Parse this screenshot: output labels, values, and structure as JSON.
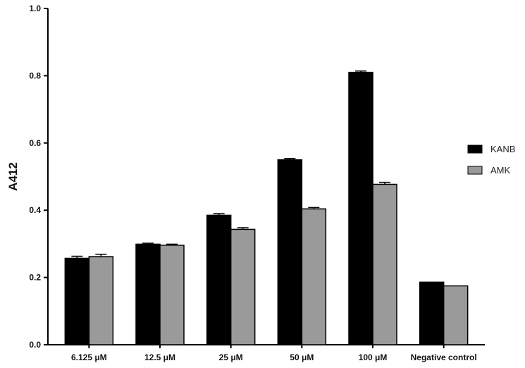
{
  "chart_data": {
    "type": "bar",
    "title": "",
    "xlabel": "",
    "ylabel": "A412",
    "ylim": [
      0,
      1.0
    ],
    "yticks": [
      "0.0",
      "0.2",
      "0.4",
      "0.6",
      "0.8",
      "1.0"
    ],
    "grid": false,
    "legend_position": "right",
    "categories": [
      "6.125 μM",
      "12.5 μM",
      "25 μM",
      "50 μM",
      "100 μM",
      "Negative control"
    ],
    "series": [
      {
        "name": "KANB",
        "color": "#000000",
        "values": [
          0.257,
          0.299,
          0.385,
          0.55,
          0.81,
          0.186
        ],
        "errors": [
          0.006,
          0.003,
          0.005,
          0.004,
          0.004,
          0.0
        ]
      },
      {
        "name": "AMK",
        "color": "#9a9a9a",
        "values": [
          0.262,
          0.296,
          0.343,
          0.404,
          0.477,
          0.175
        ],
        "errors": [
          0.007,
          0.003,
          0.005,
          0.004,
          0.006,
          0.0
        ]
      }
    ]
  }
}
